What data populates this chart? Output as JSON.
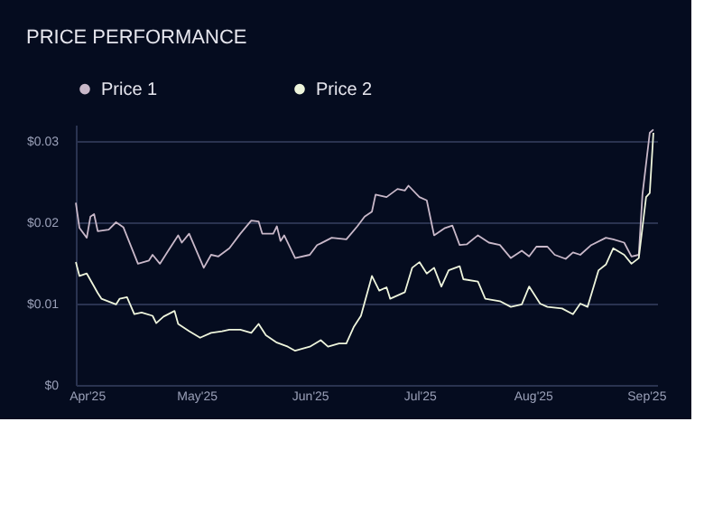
{
  "chart_data": {
    "type": "line",
    "title": "PRICE PERFORMANCE",
    "x": [
      "2025-03-29",
      "2025-03-30",
      "2025-04-01",
      "2025-04-02",
      "2025-04-03",
      "2025-04-04",
      "2025-04-07",
      "2025-04-09",
      "2025-04-11",
      "2025-04-15",
      "2025-04-18",
      "2025-04-19",
      "2025-04-21",
      "2025-04-23",
      "2025-04-26",
      "2025-04-27",
      "2025-04-29",
      "2025-05-03",
      "2025-05-05",
      "2025-05-07",
      "2025-05-10",
      "2025-05-13",
      "2025-05-16",
      "2025-05-18",
      "2025-05-19",
      "2025-05-22",
      "2025-05-23",
      "2025-05-24",
      "2025-05-25",
      "2025-05-28",
      "2025-06-01",
      "2025-06-03",
      "2025-06-04",
      "2025-06-07",
      "2025-06-11",
      "2025-06-14",
      "2025-06-16",
      "2025-06-18",
      "2025-06-19",
      "2025-06-22",
      "2025-06-25",
      "2025-06-27",
      "2025-06-28",
      "2025-07-01",
      "2025-07-03",
      "2025-07-05",
      "2025-07-08",
      "2025-07-10",
      "2025-07-12",
      "2025-07-14",
      "2025-07-17",
      "2025-07-20",
      "2025-07-23",
      "2025-07-26",
      "2025-07-29",
      "2025-07-31",
      "2025-08-02",
      "2025-08-05",
      "2025-08-07",
      "2025-08-10",
      "2025-08-12",
      "2025-08-14",
      "2025-08-17",
      "2025-08-21",
      "2025-08-23",
      "2025-08-26",
      "2025-08-28",
      "2025-08-30",
      "2025-08-31",
      "2025-09-02",
      "2025-09-03"
    ],
    "series": [
      {
        "name": "Price 1",
        "color": "#c9b8c9",
        "values": [
          0.0224,
          0.0193,
          0.0181,
          0.0207,
          0.021,
          0.0189,
          0.0191,
          0.02,
          0.0194,
          0.0149,
          0.0153,
          0.016,
          0.0149,
          0.0163,
          0.0184,
          0.0175,
          0.0186,
          0.0144,
          0.016,
          0.0158,
          0.0168,
          0.0186,
          0.0202,
          0.0201,
          0.0186,
          0.0186,
          0.0195,
          0.0177,
          0.0184,
          0.0156,
          0.016,
          0.0172,
          0.0174,
          0.0181,
          0.0179,
          0.0195,
          0.0207,
          0.0213,
          0.0234,
          0.0231,
          0.0241,
          0.0239,
          0.0245,
          0.0231,
          0.0227,
          0.0184,
          0.0193,
          0.0196,
          0.0172,
          0.0173,
          0.0184,
          0.0175,
          0.0172,
          0.0156,
          0.0165,
          0.0158,
          0.017,
          0.017,
          0.016,
          0.0155,
          0.0163,
          0.016,
          0.0172,
          0.0181,
          0.0179,
          0.0175,
          0.0158,
          0.016,
          0.0234,
          0.031,
          0.0314
        ]
      },
      {
        "name": "Price 2",
        "color": "#eef5dc",
        "x": [
          "2025-03-29",
          "2025-03-30",
          "2025-04-01",
          "2025-04-04",
          "2025-04-05",
          "2025-04-09",
          "2025-04-10",
          "2025-04-12",
          "2025-04-14",
          "2025-04-16",
          "2025-04-19",
          "2025-04-20",
          "2025-04-22",
          "2025-04-25",
          "2025-04-26",
          "2025-04-29",
          "2025-05-02",
          "2025-05-05",
          "2025-05-08",
          "2025-05-10",
          "2025-05-13",
          "2025-05-16",
          "2025-05-18",
          "2025-05-20",
          "2025-05-23",
          "2025-05-26",
          "2025-05-28",
          "2025-06-01",
          "2025-06-04",
          "2025-06-06",
          "2025-06-09",
          "2025-06-11",
          "2025-06-13",
          "2025-06-15",
          "2025-06-18",
          "2025-06-20",
          "2025-06-22",
          "2025-06-23",
          "2025-06-27",
          "2025-06-29",
          "2025-07-01",
          "2025-07-03",
          "2025-07-05",
          "2025-07-07",
          "2025-07-09",
          "2025-07-12",
          "2025-07-13",
          "2025-07-17",
          "2025-07-19",
          "2025-07-23",
          "2025-07-26",
          "2025-07-29",
          "2025-07-31",
          "2025-08-03",
          "2025-08-05",
          "2025-08-09",
          "2025-08-12",
          "2025-08-14",
          "2025-08-16",
          "2025-08-19",
          "2025-08-21",
          "2025-08-23",
          "2025-08-26",
          "2025-08-28",
          "2025-08-30",
          "2025-09-01",
          "2025-09-02",
          "2025-09-03"
        ],
        "values": [
          0.0151,
          0.0134,
          0.0137,
          0.0113,
          0.0106,
          0.0099,
          0.0106,
          0.0108,
          0.0087,
          0.0089,
          0.0085,
          0.0076,
          0.0084,
          0.0091,
          0.0075,
          0.0066,
          0.0058,
          0.0064,
          0.0066,
          0.0068,
          0.0068,
          0.0064,
          0.0075,
          0.0061,
          0.0052,
          0.0047,
          0.0042,
          0.0047,
          0.0055,
          0.0047,
          0.0051,
          0.0051,
          0.0071,
          0.0085,
          0.0134,
          0.0116,
          0.012,
          0.0106,
          0.0114,
          0.0144,
          0.0151,
          0.0137,
          0.0144,
          0.0121,
          0.0141,
          0.0146,
          0.013,
          0.0127,
          0.0106,
          0.0103,
          0.0096,
          0.0099,
          0.0121,
          0.01,
          0.0096,
          0.0094,
          0.0087,
          0.01,
          0.0096,
          0.0141,
          0.0148,
          0.0168,
          0.016,
          0.0149,
          0.0156,
          0.0231,
          0.0236,
          0.031
        ]
      }
    ],
    "xlim": [
      "2025-03-29",
      "2025-09-04"
    ],
    "xticks": [
      {
        "value": "2025-04-01",
        "label": "Apr'25"
      },
      {
        "value": "2025-05-01",
        "label": "May'25"
      },
      {
        "value": "2025-06-01",
        "label": "Jun'25"
      },
      {
        "value": "2025-07-01",
        "label": "Jul'25"
      },
      {
        "value": "2025-08-01",
        "label": "Aug'25"
      },
      {
        "value": "2025-09-01",
        "label": "Sep'25"
      }
    ],
    "ylim": [
      0,
      0.032
    ],
    "yticks": [
      {
        "value": 0,
        "label": "$0"
      },
      {
        "value": 0.01,
        "label": "$0.01"
      },
      {
        "value": 0.02,
        "label": "$0.02"
      },
      {
        "value": 0.03,
        "label": "$0.03"
      }
    ],
    "grid": "y",
    "legend": "top",
    "marker": "none",
    "line_style": "solid"
  }
}
